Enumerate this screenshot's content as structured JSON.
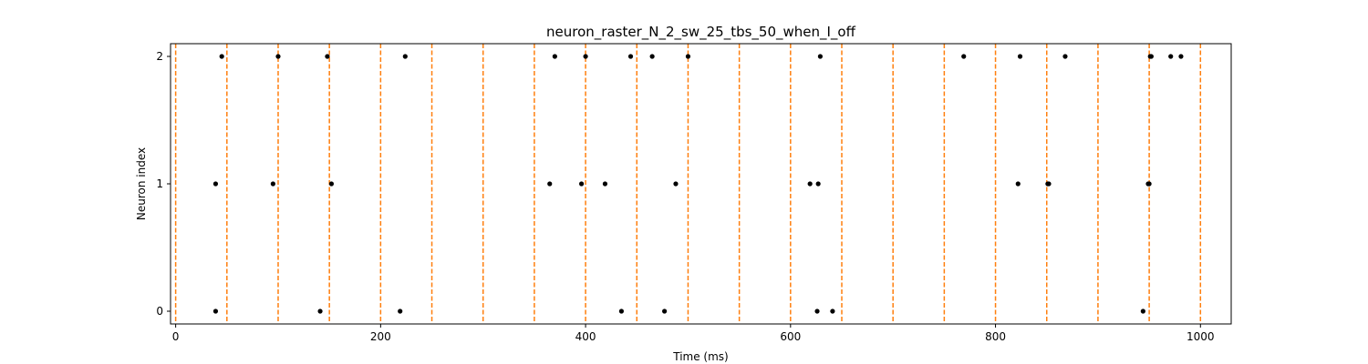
{
  "chart_data": {
    "type": "scatter",
    "title": "neuron_raster_N_2_sw_25_tbs_50_when_I_off",
    "xlabel": "Time (ms)",
    "ylabel": "Neuron index",
    "xlim": [
      -5,
      1030
    ],
    "ylim": [
      -0.1,
      2.1
    ],
    "x_ticks": [
      0,
      200,
      400,
      600,
      800,
      1000
    ],
    "y_ticks": [
      0,
      1,
      2
    ],
    "grid": false,
    "legend": "none",
    "marker_color": "#000000",
    "boundary_color": "#ff7f0e",
    "time_bin_boundaries": [
      0,
      50,
      100,
      150,
      200,
      250,
      300,
      350,
      400,
      450,
      500,
      550,
      600,
      650,
      700,
      750,
      800,
      850,
      900,
      950,
      1000
    ],
    "series": [
      {
        "neuron": 0,
        "spike_times": [
          39,
          141,
          219,
          435,
          477,
          626,
          641,
          944
        ]
      },
      {
        "neuron": 1,
        "spike_times": [
          39,
          95,
          152,
          365,
          396,
          419,
          488,
          619,
          627,
          822,
          851,
          852,
          949,
          950
        ]
      },
      {
        "neuron": 2,
        "spike_times": [
          45,
          100,
          148,
          224,
          370,
          400,
          444,
          465,
          500,
          629,
          769,
          824,
          868,
          951,
          952,
          971,
          981
        ]
      }
    ]
  }
}
